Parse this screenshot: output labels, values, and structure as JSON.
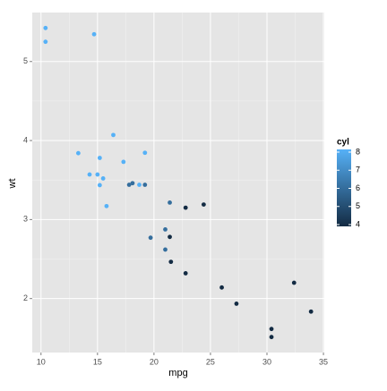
{
  "chart_data": {
    "type": "scatter",
    "x_label": "mpg",
    "y_label": "wt",
    "x": [
      21.0,
      21.0,
      22.8,
      21.4,
      18.7,
      18.1,
      14.3,
      24.4,
      22.8,
      19.2,
      17.8,
      16.4,
      17.3,
      15.2,
      10.4,
      10.4,
      14.7,
      32.4,
      30.4,
      33.9,
      21.5,
      15.5,
      15.2,
      13.3,
      19.2,
      27.3,
      26.0,
      30.4,
      15.8,
      19.7,
      15.0,
      21.4
    ],
    "y": [
      2.62,
      2.875,
      2.32,
      3.215,
      3.44,
      3.46,
      3.57,
      3.19,
      3.15,
      3.44,
      3.44,
      4.07,
      3.73,
      3.78,
      5.25,
      5.424,
      5.345,
      2.2,
      1.615,
      1.835,
      2.465,
      3.52,
      3.435,
      3.84,
      3.845,
      1.935,
      2.14,
      1.513,
      3.17,
      2.77,
      3.57,
      2.78
    ],
    "color_values": [
      6,
      6,
      4,
      6,
      8,
      6,
      8,
      4,
      4,
      6,
      6,
      8,
      8,
      8,
      8,
      8,
      8,
      4,
      4,
      4,
      4,
      8,
      8,
      8,
      8,
      4,
      4,
      4,
      8,
      6,
      8,
      4
    ],
    "color_title": "cyl",
    "color_low": "#132B43",
    "color_high": "#56B1F7",
    "colorlim": [
      4,
      8
    ],
    "colorticks": [
      4,
      5,
      6,
      7,
      8
    ],
    "xlim": [
      9.225,
      35.075
    ],
    "xticks": [
      10,
      15,
      20,
      25,
      30,
      35
    ],
    "ylim": [
      1.317,
      5.62
    ],
    "yticks": [
      2,
      3,
      4,
      5
    ],
    "grid": true
  }
}
